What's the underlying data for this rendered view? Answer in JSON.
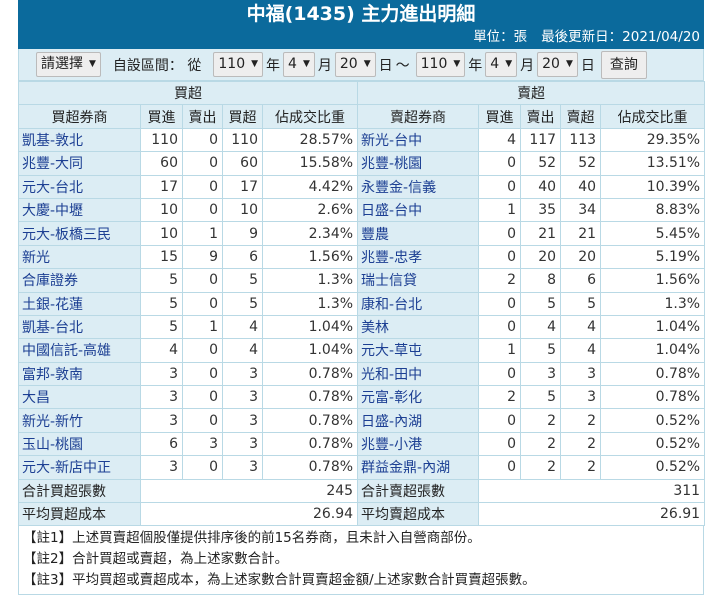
{
  "title": "中福(1435) 主力進出明細",
  "unit": "單位：張",
  "updated": "最後更新日：2021/04/20",
  "controls": {
    "preset": "請選擇",
    "range_label": "自設區間： 從",
    "from_year": "110",
    "from_month": "4",
    "from_day": "20",
    "to_year": "110",
    "to_month": "4",
    "to_day": "20",
    "year": "年",
    "month": "月",
    "day": "日",
    "tilde": "～",
    "query": "查詢"
  },
  "headers": {
    "buy_group": "買超",
    "sell_group": "賣超",
    "buy_broker": "買超券商",
    "sell_broker": "賣超券商",
    "buy": "買進",
    "sell": "賣出",
    "net_buy": "買超",
    "net_sell": "賣超",
    "pct": "佔成交比重"
  },
  "buy_rows": [
    [
      "凱基-敦北",
      "110",
      "0",
      "110",
      "28.57%"
    ],
    [
      "兆豐-大同",
      "60",
      "0",
      "60",
      "15.58%"
    ],
    [
      "元大-台北",
      "17",
      "0",
      "17",
      "4.42%"
    ],
    [
      "大慶-中壢",
      "10",
      "0",
      "10",
      "2.6%"
    ],
    [
      "元大-板橋三民",
      "10",
      "1",
      "9",
      "2.34%"
    ],
    [
      "新光",
      "15",
      "9",
      "6",
      "1.56%"
    ],
    [
      "合庫證券",
      "5",
      "0",
      "5",
      "1.3%"
    ],
    [
      "土銀-花蓮",
      "5",
      "0",
      "5",
      "1.3%"
    ],
    [
      "凱基-台北",
      "5",
      "1",
      "4",
      "1.04%"
    ],
    [
      "中國信託-高雄",
      "4",
      "0",
      "4",
      "1.04%"
    ],
    [
      "富邦-敦南",
      "3",
      "0",
      "3",
      "0.78%"
    ],
    [
      "大昌",
      "3",
      "0",
      "3",
      "0.78%"
    ],
    [
      "新光-新竹",
      "3",
      "0",
      "3",
      "0.78%"
    ],
    [
      "玉山-桃園",
      "6",
      "3",
      "3",
      "0.78%"
    ],
    [
      "元大-新店中正",
      "3",
      "0",
      "3",
      "0.78%"
    ]
  ],
  "sell_rows": [
    [
      "新光-台中",
      "4",
      "117",
      "113",
      "29.35%"
    ],
    [
      "兆豐-桃園",
      "0",
      "52",
      "52",
      "13.51%"
    ],
    [
      "永豐金-信義",
      "0",
      "40",
      "40",
      "10.39%"
    ],
    [
      "日盛-台中",
      "1",
      "35",
      "34",
      "8.83%"
    ],
    [
      "豐農",
      "0",
      "21",
      "21",
      "5.45%"
    ],
    [
      "兆豐-忠孝",
      "0",
      "20",
      "20",
      "5.19%"
    ],
    [
      "瑞士信貸",
      "2",
      "8",
      "6",
      "1.56%"
    ],
    [
      "康和-台北",
      "0",
      "5",
      "5",
      "1.3%"
    ],
    [
      "美林",
      "0",
      "4",
      "4",
      "1.04%"
    ],
    [
      "元大-草屯",
      "1",
      "5",
      "4",
      "1.04%"
    ],
    [
      "光和-田中",
      "0",
      "3",
      "3",
      "0.78%"
    ],
    [
      "元富-彰化",
      "2",
      "5",
      "3",
      "0.78%"
    ],
    [
      "日盛-內湖",
      "0",
      "2",
      "2",
      "0.52%"
    ],
    [
      "兆豐-小港",
      "0",
      "2",
      "2",
      "0.52%"
    ],
    [
      "群益金鼎-內湖",
      "0",
      "2",
      "2",
      "0.52%"
    ]
  ],
  "totals": {
    "buy_total_label": "合計買超張數",
    "buy_total": "245",
    "sell_total_label": "合計賣超張數",
    "sell_total": "311",
    "buy_avg_label": "平均買超成本",
    "buy_avg": "26.94",
    "sell_avg_label": "平均賣超成本",
    "sell_avg": "26.91"
  },
  "notes": [
    "【註1】上述買賣超個股僅提供排序後的前15名券商，且未計入自營商部份。",
    "【註2】合計買超或賣超，為上述家數合計。",
    "【註3】平均買超或賣超成本，為上述家數合計買賣超金額/上述家數合計買賣超張數。"
  ]
}
